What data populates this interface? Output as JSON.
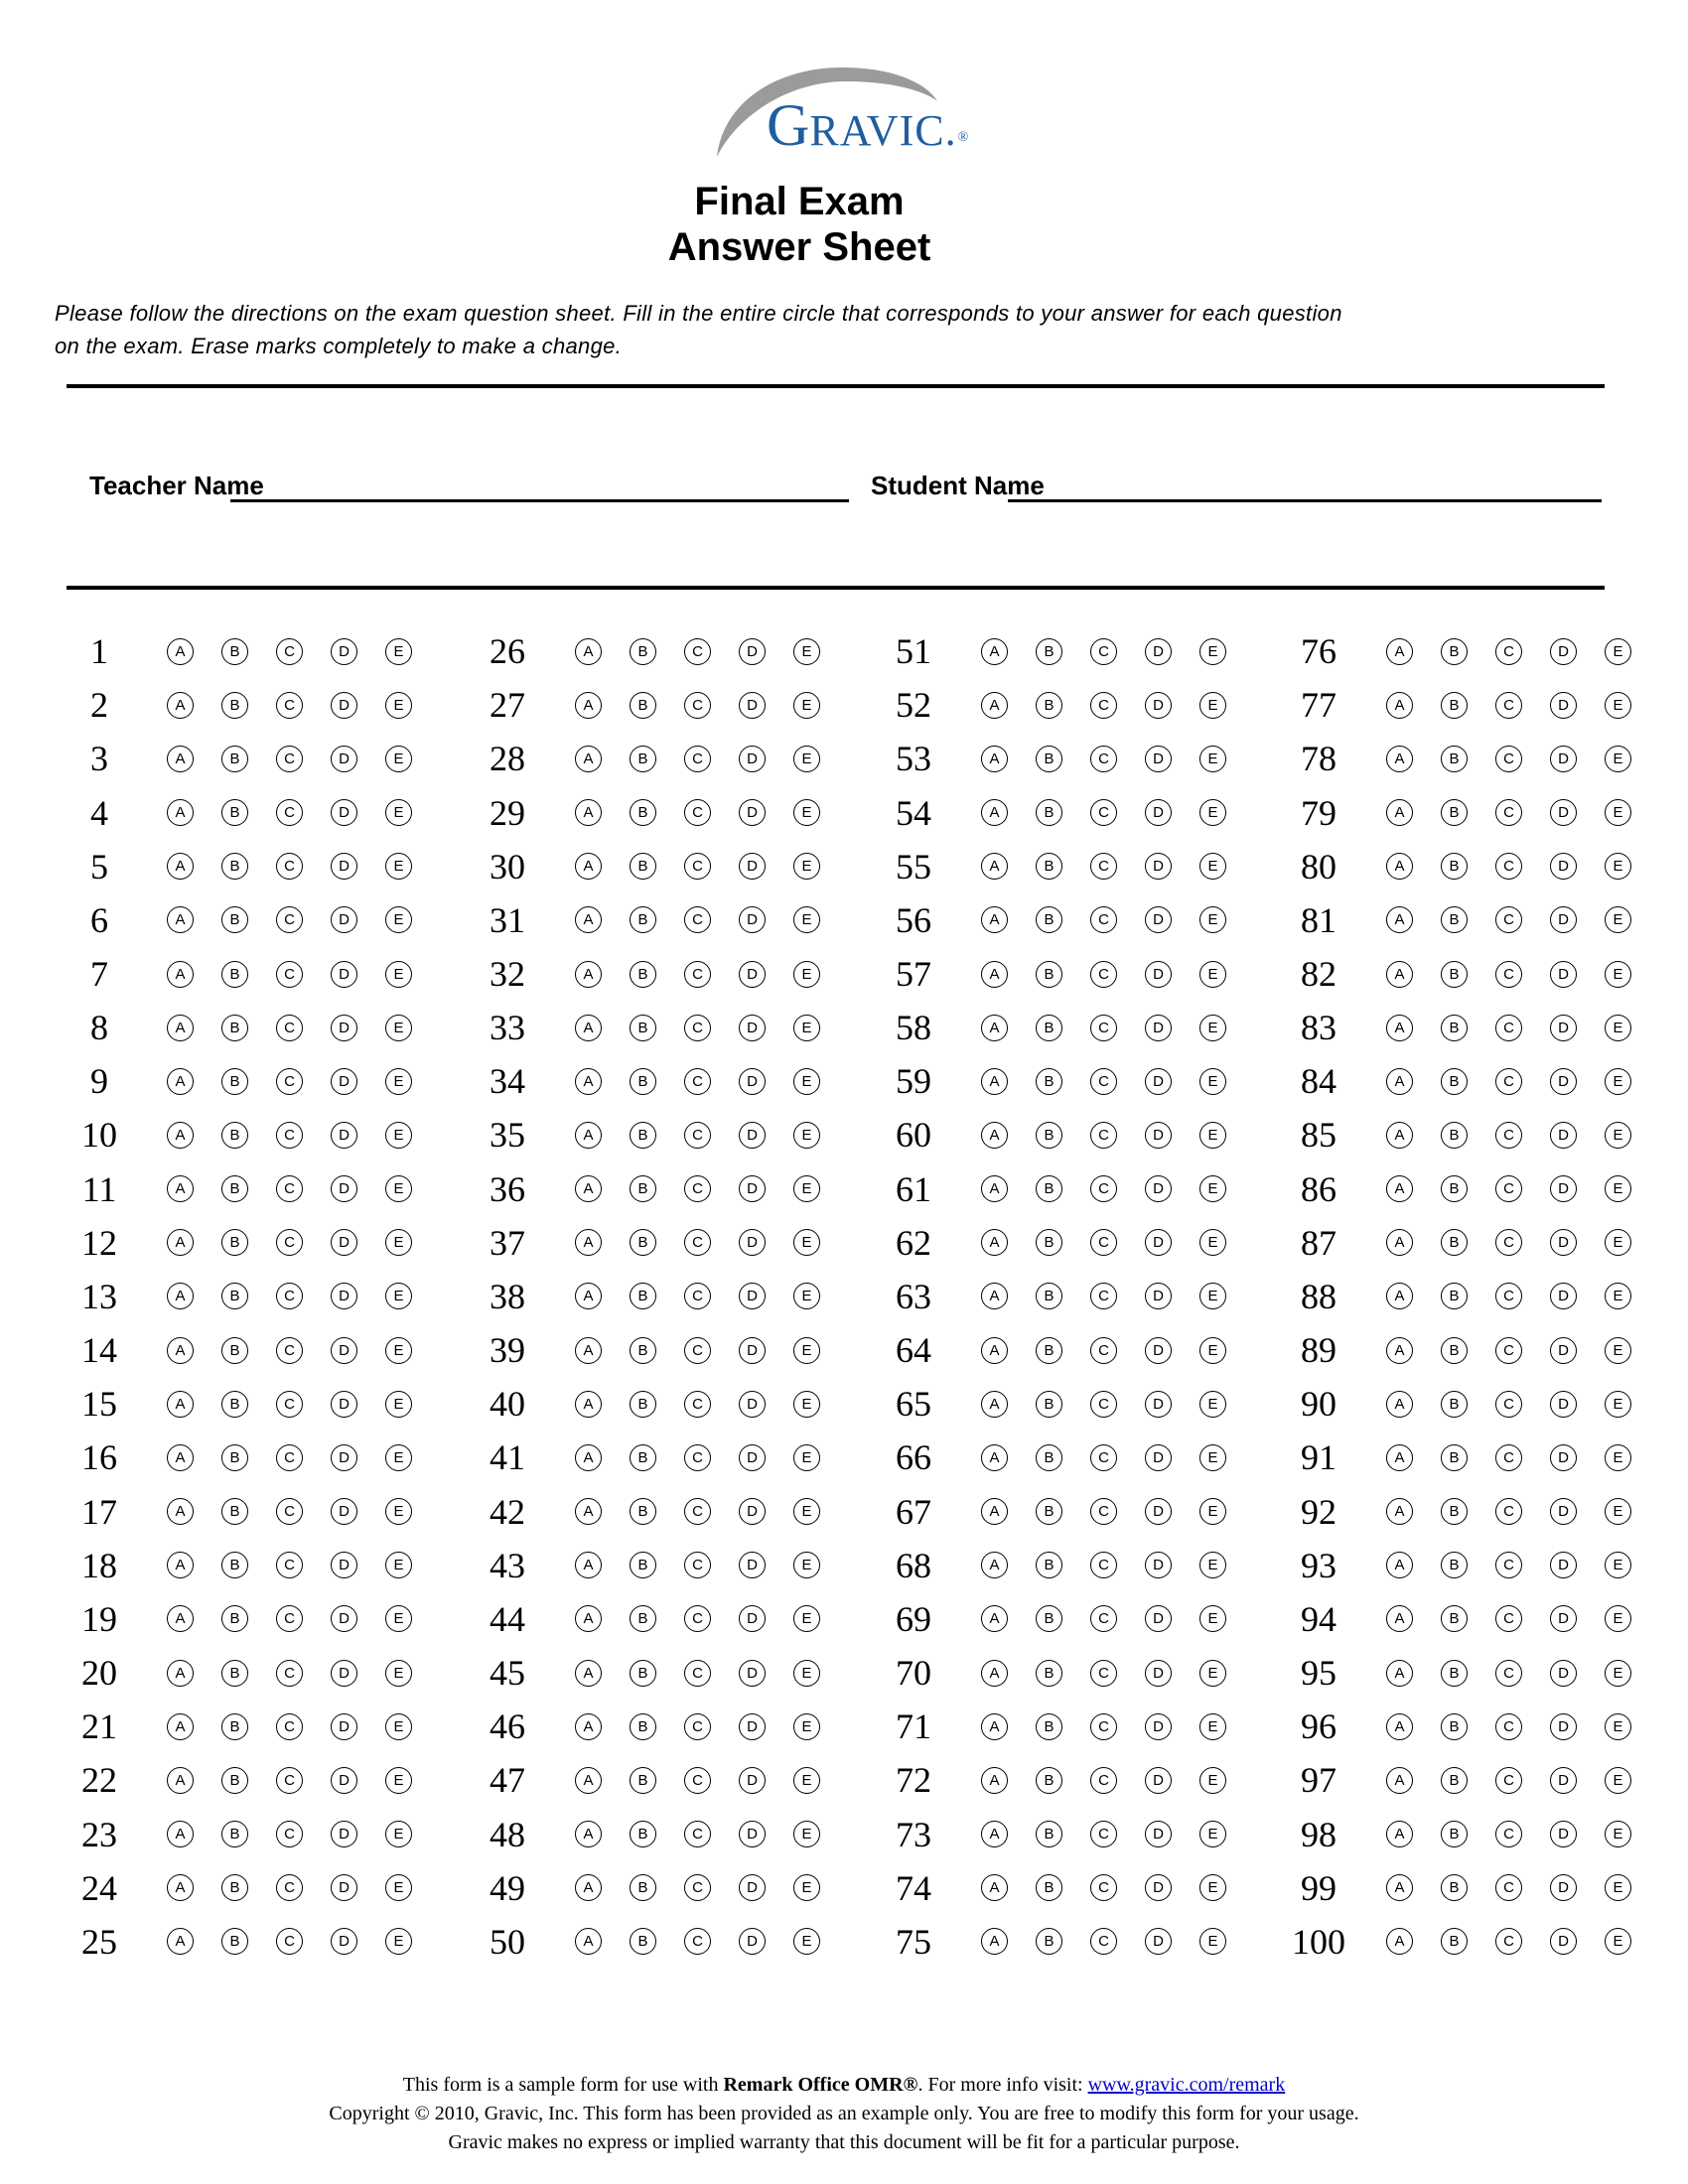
{
  "logo": {
    "brand_g": "G",
    "brand_rest": "RAVIC.",
    "registered": "®"
  },
  "header": {
    "title_line1": "Final Exam",
    "title_line2": "Answer Sheet"
  },
  "instructions": {
    "line1": "Please follow the directions on the exam question sheet. Fill in the entire circle that corresponds to your answer for each question",
    "line2": "on the exam. Erase marks completely to make a change."
  },
  "fields": {
    "teacher_label": "Teacher Name",
    "teacher_value": "",
    "student_label": "Student Name",
    "student_value": ""
  },
  "answer_grid": {
    "choices": [
      "A",
      "B",
      "C",
      "D",
      "E"
    ],
    "columns": [
      {
        "questions": [
          1,
          2,
          3,
          4,
          5,
          6,
          7,
          8,
          9,
          10,
          11,
          12,
          13,
          14,
          15,
          16,
          17,
          18,
          19,
          20,
          21,
          22,
          23,
          24,
          25
        ]
      },
      {
        "questions": [
          26,
          27,
          28,
          29,
          30,
          31,
          32,
          33,
          34,
          35,
          36,
          37,
          38,
          39,
          40,
          41,
          42,
          43,
          44,
          45,
          46,
          47,
          48,
          49,
          50
        ]
      },
      {
        "questions": [
          51,
          52,
          53,
          54,
          55,
          56,
          57,
          58,
          59,
          60,
          61,
          62,
          63,
          64,
          65,
          66,
          67,
          68,
          69,
          70,
          71,
          72,
          73,
          74,
          75
        ]
      },
      {
        "questions": [
          76,
          77,
          78,
          79,
          80,
          81,
          82,
          83,
          84,
          85,
          86,
          87,
          88,
          89,
          90,
          91,
          92,
          93,
          94,
          95,
          96,
          97,
          98,
          99,
          100
        ]
      }
    ]
  },
  "footer": {
    "line1_prefix": "This form is a sample form for use with ",
    "line1_bold": "Remark Office OMR®",
    "line1_mid": ". For more info visit: ",
    "line1_link": "www.gravic.com/remark",
    "line2": "Copyright © 2010, Gravic, Inc. This form has been provided as an example only. You are free to modify this form for your usage.",
    "line3": "Gravic makes no express or implied warranty that this document will be fit for a particular purpose."
  },
  "colors": {
    "brand_blue": "#1f5e9e",
    "swoosh_gray": "#9b9b9b",
    "link_blue": "#0000cc",
    "ink": "#000000"
  }
}
